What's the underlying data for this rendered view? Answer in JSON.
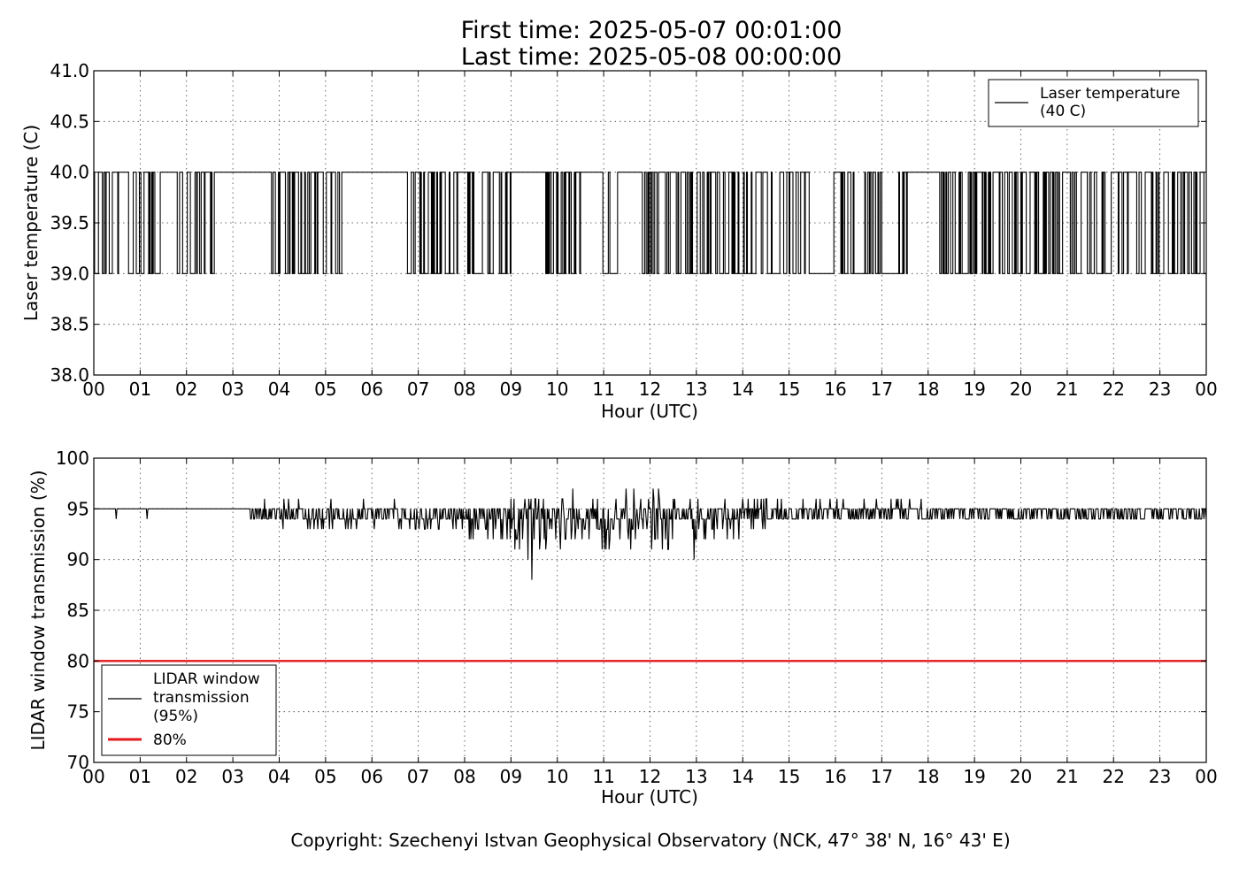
{
  "figure": {
    "title_line1": "First time: 2025-05-07 00:01:00",
    "title_line2": "Last time: 2025-05-08 00:00:00",
    "copyright": "Copyright: Szechenyi Istvan Geophysical Observatory (NCK, 47° 38' N, 16° 43' E)"
  },
  "chart_data": [
    {
      "type": "line",
      "xlabel": "Hour (UTC)",
      "ylabel": "Laser temperature (C)",
      "xlim": [
        0,
        24
      ],
      "ylim": [
        38.0,
        41.0
      ],
      "x_ticks": [
        0,
        1,
        2,
        3,
        4,
        5,
        6,
        7,
        8,
        9,
        10,
        11,
        12,
        13,
        14,
        15,
        16,
        17,
        18,
        19,
        20,
        21,
        22,
        23,
        24
      ],
      "x_tick_labels": [
        "00",
        "01",
        "02",
        "03",
        "04",
        "05",
        "06",
        "07",
        "08",
        "09",
        "10",
        "11",
        "12",
        "13",
        "14",
        "15",
        "16",
        "17",
        "18",
        "19",
        "20",
        "21",
        "22",
        "23",
        "00"
      ],
      "y_ticks": [
        38.0,
        38.5,
        39.0,
        39.5,
        40.0,
        40.5,
        41.0
      ],
      "y_tick_labels": [
        "38.0",
        "38.5",
        "39.0",
        "39.5",
        "40.0",
        "40.5",
        "41.0"
      ],
      "grid": true,
      "legend_position": "top-right",
      "series": [
        {
          "name": "Laser temperature\n(40 C)",
          "color": "#000000",
          "levels": [
            39.0,
            40.0
          ],
          "segments": [
            {
              "start": 0.0,
              "end": 0.55,
              "state": "toggle"
            },
            {
              "start": 0.55,
              "end": 0.75,
              "state": 40.0
            },
            {
              "start": 0.75,
              "end": 1.45,
              "state": "toggle"
            },
            {
              "start": 1.45,
              "end": 1.75,
              "state": 40.0
            },
            {
              "start": 1.75,
              "end": 2.6,
              "state": "toggle"
            },
            {
              "start": 2.6,
              "end": 2.95,
              "state": 40.0
            },
            {
              "start": 2.95,
              "end": 3.75,
              "state": 40.0
            },
            {
              "start": 3.75,
              "end": 4.75,
              "state": "toggle"
            },
            {
              "start": 4.75,
              "end": 5.35,
              "state": "toggle"
            },
            {
              "start": 5.35,
              "end": 6.7,
              "state": 40.0
            },
            {
              "start": 6.7,
              "end": 9.0,
              "state": "toggle"
            },
            {
              "start": 9.0,
              "end": 9.75,
              "state": 40.0
            },
            {
              "start": 9.75,
              "end": 10.6,
              "state": "toggle"
            },
            {
              "start": 10.6,
              "end": 10.95,
              "state": 40.0
            },
            {
              "start": 10.95,
              "end": 11.3,
              "state": "toggle"
            },
            {
              "start": 11.3,
              "end": 11.75,
              "state": 40.0
            },
            {
              "start": 11.75,
              "end": 15.45,
              "state": "toggle"
            },
            {
              "start": 15.45,
              "end": 15.95,
              "state": 39.0
            },
            {
              "start": 15.95,
              "end": 17.0,
              "state": "toggle"
            },
            {
              "start": 17.0,
              "end": 17.35,
              "state": 39.0
            },
            {
              "start": 17.35,
              "end": 17.55,
              "state": "toggle"
            },
            {
              "start": 17.55,
              "end": 18.2,
              "state": 40.0
            },
            {
              "start": 18.2,
              "end": 24.0,
              "state": "toggle"
            }
          ]
        }
      ]
    },
    {
      "type": "line",
      "xlabel": "Hour (UTC)",
      "ylabel": "LIDAR window transmission (%)",
      "xlim": [
        0,
        24
      ],
      "ylim": [
        70,
        100
      ],
      "x_ticks": [
        0,
        1,
        2,
        3,
        4,
        5,
        6,
        7,
        8,
        9,
        10,
        11,
        12,
        13,
        14,
        15,
        16,
        17,
        18,
        19,
        20,
        21,
        22,
        23,
        24
      ],
      "x_tick_labels": [
        "00",
        "01",
        "02",
        "03",
        "04",
        "05",
        "06",
        "07",
        "08",
        "09",
        "10",
        "11",
        "12",
        "13",
        "14",
        "15",
        "16",
        "17",
        "18",
        "19",
        "20",
        "21",
        "22",
        "23",
        "00"
      ],
      "y_ticks": [
        70,
        75,
        80,
        85,
        90,
        95,
        100
      ],
      "y_tick_labels": [
        "70",
        "75",
        "80",
        "85",
        "90",
        "95",
        "100"
      ],
      "grid": true,
      "legend_position": "bottom-left",
      "series": [
        {
          "name": "LIDAR window\ntransmission\n(95%)",
          "color": "#000000",
          "baseline": 95,
          "dips": [
            [
              0.48,
              94
            ],
            [
              1.15,
              94
            ],
            [
              9.45,
              88
            ],
            [
              12.95,
              90
            ]
          ],
          "noise_profile": [
            {
              "start": 0.0,
              "end": 3.35,
              "low": 95,
              "high": 95
            },
            {
              "start": 3.35,
              "end": 4.0,
              "low": 94,
              "high": 96
            },
            {
              "start": 4.0,
              "end": 7.0,
              "low": 93,
              "high": 96
            },
            {
              "start": 7.0,
              "end": 8.0,
              "low": 93,
              "high": 95
            },
            {
              "start": 8.0,
              "end": 9.0,
              "low": 92,
              "high": 95
            },
            {
              "start": 9.0,
              "end": 10.0,
              "low": 90,
              "high": 96
            },
            {
              "start": 10.0,
              "end": 12.5,
              "low": 91,
              "high": 97
            },
            {
              "start": 12.5,
              "end": 14.5,
              "low": 92,
              "high": 96
            },
            {
              "start": 14.5,
              "end": 18.0,
              "low": 94,
              "high": 96
            },
            {
              "start": 18.0,
              "end": 24.0,
              "low": 94,
              "high": 95
            }
          ]
        },
        {
          "name": "80%",
          "color": "#e31a1c",
          "x": [
            0,
            24
          ],
          "values": [
            80,
            80
          ]
        }
      ]
    }
  ]
}
